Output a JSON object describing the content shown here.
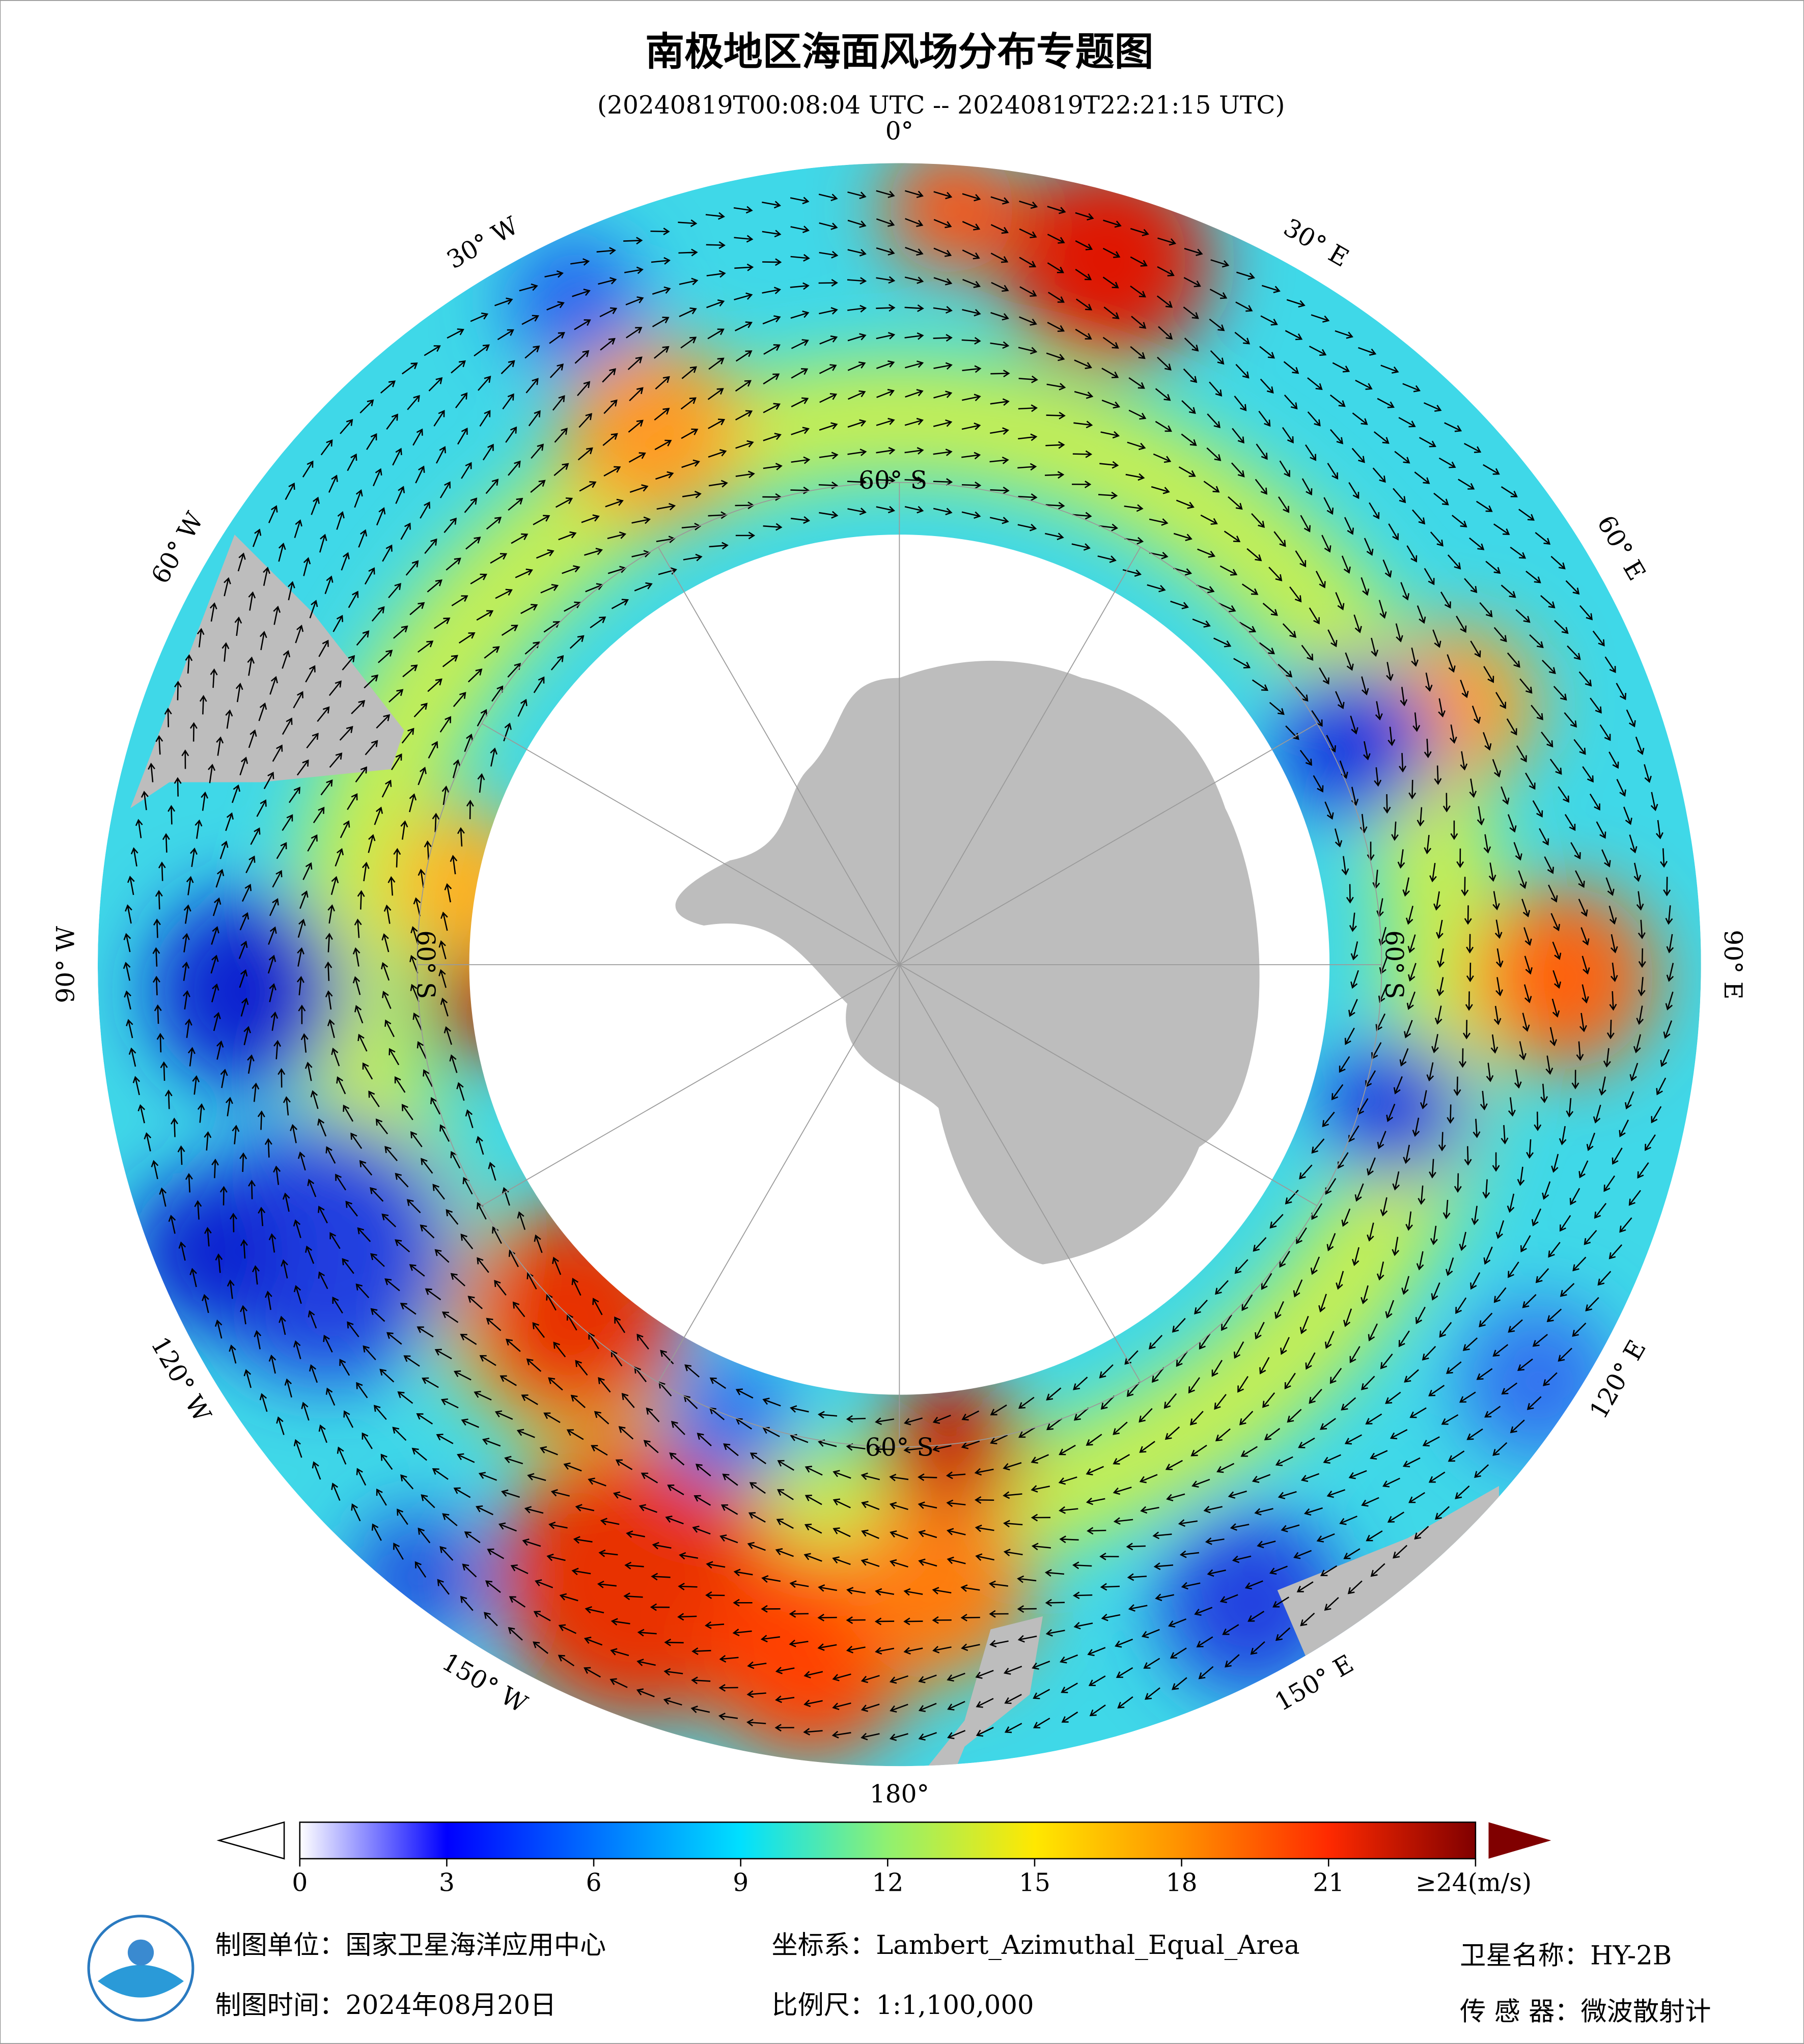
{
  "title": "南极地区海面风场分布专题图",
  "subtitle": "(20240819T00:08:04 UTC -- 20240819T22:21:15 UTC)",
  "map": {
    "longitude_labels": [
      "0°",
      "30° E",
      "60° E",
      "90° E",
      "120° E",
      "150° E",
      "180°",
      "150° W",
      "120° W",
      "90° W",
      "60° W",
      "30° W"
    ],
    "latitude_labels": [
      "60° S",
      "60° S",
      "60° S",
      "60° S"
    ]
  },
  "colorbar": {
    "range": [
      0,
      24
    ],
    "ticks": [
      0,
      3,
      6,
      9,
      12,
      15,
      18,
      21,
      {
        "value": 24,
        "label": "≥24(m/s)"
      }
    ],
    "colors": [
      "#ffffff",
      "#0000ff",
      "#0070ff",
      "#00e0ff",
      "#90f070",
      "#ffe800",
      "#ff9000",
      "#ff2a00",
      "#800000"
    ]
  },
  "footer": {
    "organization": "制图单位：国家卫星海洋应用中心",
    "date": "制图时间：2024年08月20日",
    "projection": "坐标系：Lambert_Azimuthal_Equal_Area",
    "scale": "比例尺：1:1,100,000",
    "satellite": "卫星名称：HY-2B",
    "sensor": "传 感 器：微波散射计"
  }
}
